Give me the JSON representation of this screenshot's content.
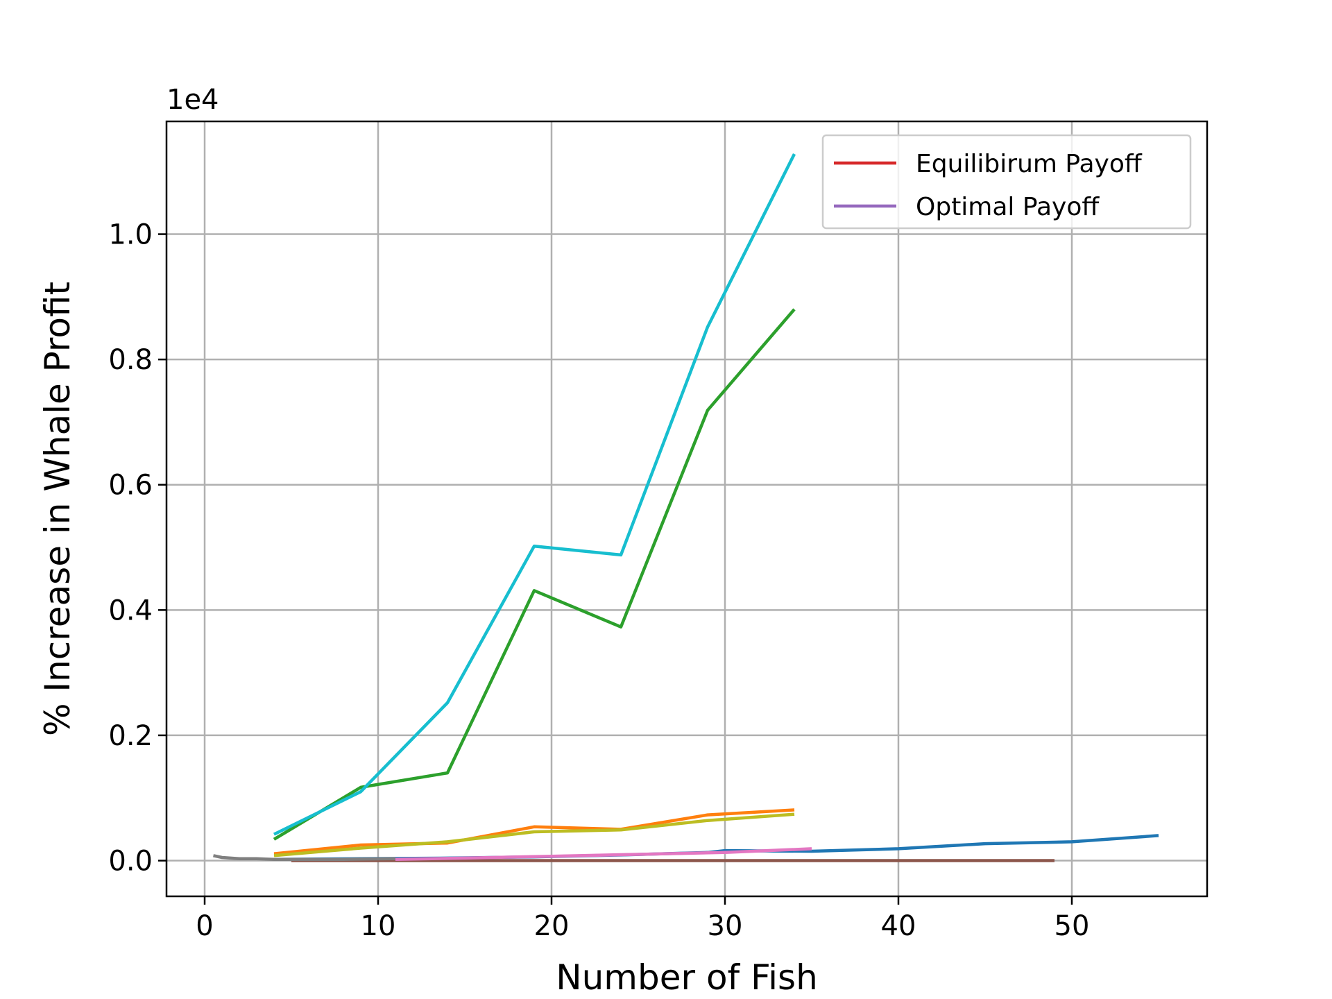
{
  "chart_data": {
    "type": "line",
    "title": "",
    "xlabel": "Number of Fish",
    "ylabel": "% Increase in Whale Profit",
    "y_offset_text": "1e4",
    "xlim": [
      -2.2,
      57.8
    ],
    "ylim": [
      -0.057,
      1.18
    ],
    "x_ticks": [
      0,
      10,
      20,
      30,
      40,
      50
    ],
    "y_ticks": [
      0.0,
      0.2,
      0.4,
      0.6,
      0.8,
      1.0
    ],
    "x_tick_labels": [
      "0",
      "10",
      "20",
      "30",
      "40",
      "50"
    ],
    "y_tick_labels": [
      "0.0",
      "0.2",
      "0.4",
      "0.6",
      "0.8",
      "1.0"
    ],
    "grid": true,
    "legend_position": "top-right",
    "legend": [
      {
        "label": "Equilibirum Payoff",
        "color": "#d62728"
      },
      {
        "label": "Optimal Payoff",
        "color": "#9467bd"
      }
    ],
    "series": [
      {
        "color": "#1f77b4",
        "x": [
          4,
          9,
          14,
          19,
          24,
          29,
          30,
          35,
          40,
          45,
          50,
          55
        ],
        "y": [
          0.002,
          0.003,
          0.004,
          0.006,
          0.009,
          0.013,
          0.016,
          0.015,
          0.019,
          0.027,
          0.03,
          0.04
        ]
      },
      {
        "color": "#ff7f0e",
        "x": [
          4,
          9,
          14,
          19,
          24,
          29,
          34
        ],
        "y": [
          0.011,
          0.025,
          0.028,
          0.054,
          0.05,
          0.073,
          0.081
        ]
      },
      {
        "color": "#2ca02c",
        "x": [
          4,
          9,
          14,
          19,
          24,
          29,
          34
        ],
        "y": [
          0.034,
          0.117,
          0.14,
          0.431,
          0.373,
          0.719,
          0.88
        ]
      },
      {
        "color": "#8c564b",
        "x": [
          5,
          10,
          20,
          30,
          40,
          49
        ],
        "y": [
          0.0,
          0.0,
          0.0,
          0.0,
          0.0,
          0.0
        ]
      },
      {
        "color": "#e377c2",
        "x": [
          11,
          15,
          20,
          25,
          30,
          35
        ],
        "y": [
          0.002,
          0.004,
          0.007,
          0.01,
          0.013,
          0.019
        ]
      },
      {
        "color": "#7f7f7f",
        "x": [
          0.5,
          1,
          1.5,
          2,
          3,
          4,
          6,
          8,
          11
        ],
        "y": [
          0.008,
          0.005,
          0.004,
          0.003,
          0.003,
          0.002,
          0.002,
          0.002,
          0.003
        ]
      },
      {
        "color": "#bcbd22",
        "x": [
          4,
          9,
          14,
          19,
          24,
          29,
          34
        ],
        "y": [
          0.008,
          0.02,
          0.03,
          0.046,
          0.049,
          0.064,
          0.074
        ]
      },
      {
        "color": "#17becf",
        "x": [
          4,
          9,
          14,
          19,
          24,
          29,
          34
        ],
        "y": [
          0.042,
          0.11,
          0.252,
          0.502,
          0.488,
          0.852,
          1.128
        ]
      }
    ]
  }
}
